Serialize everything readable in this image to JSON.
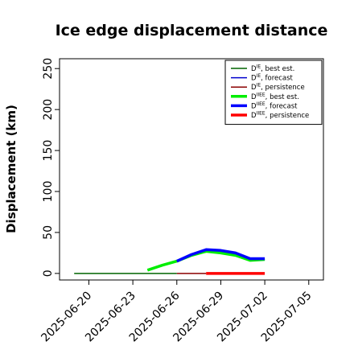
{
  "chart_data": {
    "type": "line",
    "title": "Ice edge displacement distance",
    "xlabel": "",
    "ylabel": "Displacement (km)",
    "xlim": [
      "2025-06-18",
      "2025-07-06"
    ],
    "ylim": [
      -8,
      262
    ],
    "yticks": [
      0,
      50,
      100,
      150,
      200,
      250
    ],
    "xticks": [
      {
        "date": "2025-06-20",
        "label": "2025-06-20",
        "color": "#000000"
      },
      {
        "date": "2025-06-23",
        "label": "2025-06-23",
        "color": "#000000"
      },
      {
        "date": "2025-06-26",
        "label": "2025-06-26",
        "color": "#228b22"
      },
      {
        "date": "2025-06-29",
        "label": "2025-06-29",
        "color": "#000000"
      },
      {
        "date": "2025-07-02",
        "label": "2025-07-02",
        "color": "#000000"
      },
      {
        "date": "2025-07-05",
        "label": "2025-07-05",
        "color": "#000000"
      }
    ],
    "grid": false,
    "legend_position": "top-right",
    "series": [
      {
        "name": "D^IE, best est.",
        "color": "#006400",
        "width": 1.5,
        "points": [
          {
            "x": "2025-06-19",
            "y": 0
          },
          {
            "x": "2025-06-20",
            "y": 0
          },
          {
            "x": "2025-06-21",
            "y": 0
          },
          {
            "x": "2025-06-22",
            "y": 0
          },
          {
            "x": "2025-06-23",
            "y": 0
          },
          {
            "x": "2025-06-24",
            "y": 0
          },
          {
            "x": "2025-06-25",
            "y": 0
          },
          {
            "x": "2025-06-26",
            "y": 0
          }
        ]
      },
      {
        "name": "D^IE, forecast",
        "color": "#0000cd",
        "width": 1.5,
        "points": []
      },
      {
        "name": "D^IE, persistence",
        "color": "#8b0000",
        "width": 1.5,
        "points": [
          {
            "x": "2025-06-26",
            "y": 0
          },
          {
            "x": "2025-06-27",
            "y": 0
          },
          {
            "x": "2025-06-28",
            "y": 0
          }
        ]
      },
      {
        "name": "D^IIEE, best est.",
        "color": "#00ee00",
        "width": 3.5,
        "points": [
          {
            "x": "2025-06-24",
            "y": 4
          },
          {
            "x": "2025-06-25",
            "y": 10
          },
          {
            "x": "2025-06-26",
            "y": 15
          },
          {
            "x": "2025-06-27",
            "y": 22
          },
          {
            "x": "2025-06-28",
            "y": 27
          },
          {
            "x": "2025-06-29",
            "y": 25
          },
          {
            "x": "2025-06-30",
            "y": 22
          },
          {
            "x": "2025-07-01",
            "y": 16
          },
          {
            "x": "2025-07-02",
            "y": 17
          }
        ]
      },
      {
        "name": "D^IIEE, forecast",
        "color": "#0000ff",
        "width": 3.5,
        "points": [
          {
            "x": "2025-06-26",
            "y": 15
          },
          {
            "x": "2025-06-27",
            "y": 23
          },
          {
            "x": "2025-06-28",
            "y": 29
          },
          {
            "x": "2025-06-29",
            "y": 28
          },
          {
            "x": "2025-06-30",
            "y": 25
          },
          {
            "x": "2025-07-01",
            "y": 18
          },
          {
            "x": "2025-07-02",
            "y": 18
          }
        ]
      },
      {
        "name": "D^IIEE, persistence",
        "color": "#ff0000",
        "width": 3.5,
        "points": [
          {
            "x": "2025-06-28",
            "y": 0
          },
          {
            "x": "2025-06-29",
            "y": 0
          },
          {
            "x": "2025-06-30",
            "y": 0
          },
          {
            "x": "2025-07-01",
            "y": 0
          },
          {
            "x": "2025-07-02",
            "y": 0
          }
        ]
      }
    ],
    "legend": [
      {
        "base": "D",
        "sup": "IE",
        "text": ", best est.",
        "color": "#006400",
        "width": 1.5
      },
      {
        "base": "D",
        "sup": "IE",
        "text": ", forecast",
        "color": "#0000cd",
        "width": 1.5
      },
      {
        "base": "D",
        "sup": "IE",
        "text": ", persistence",
        "color": "#8b0000",
        "width": 1.5
      },
      {
        "base": "D",
        "sup": "IIEE",
        "text": ", best est.",
        "color": "#00ee00",
        "width": 3.5
      },
      {
        "base": "D",
        "sup": "IIEE",
        "text": ", forecast",
        "color": "#0000ff",
        "width": 3.5
      },
      {
        "base": "D",
        "sup": "IIEE",
        "text": ", persistence",
        "color": "#ff0000",
        "width": 3.5
      }
    ]
  }
}
